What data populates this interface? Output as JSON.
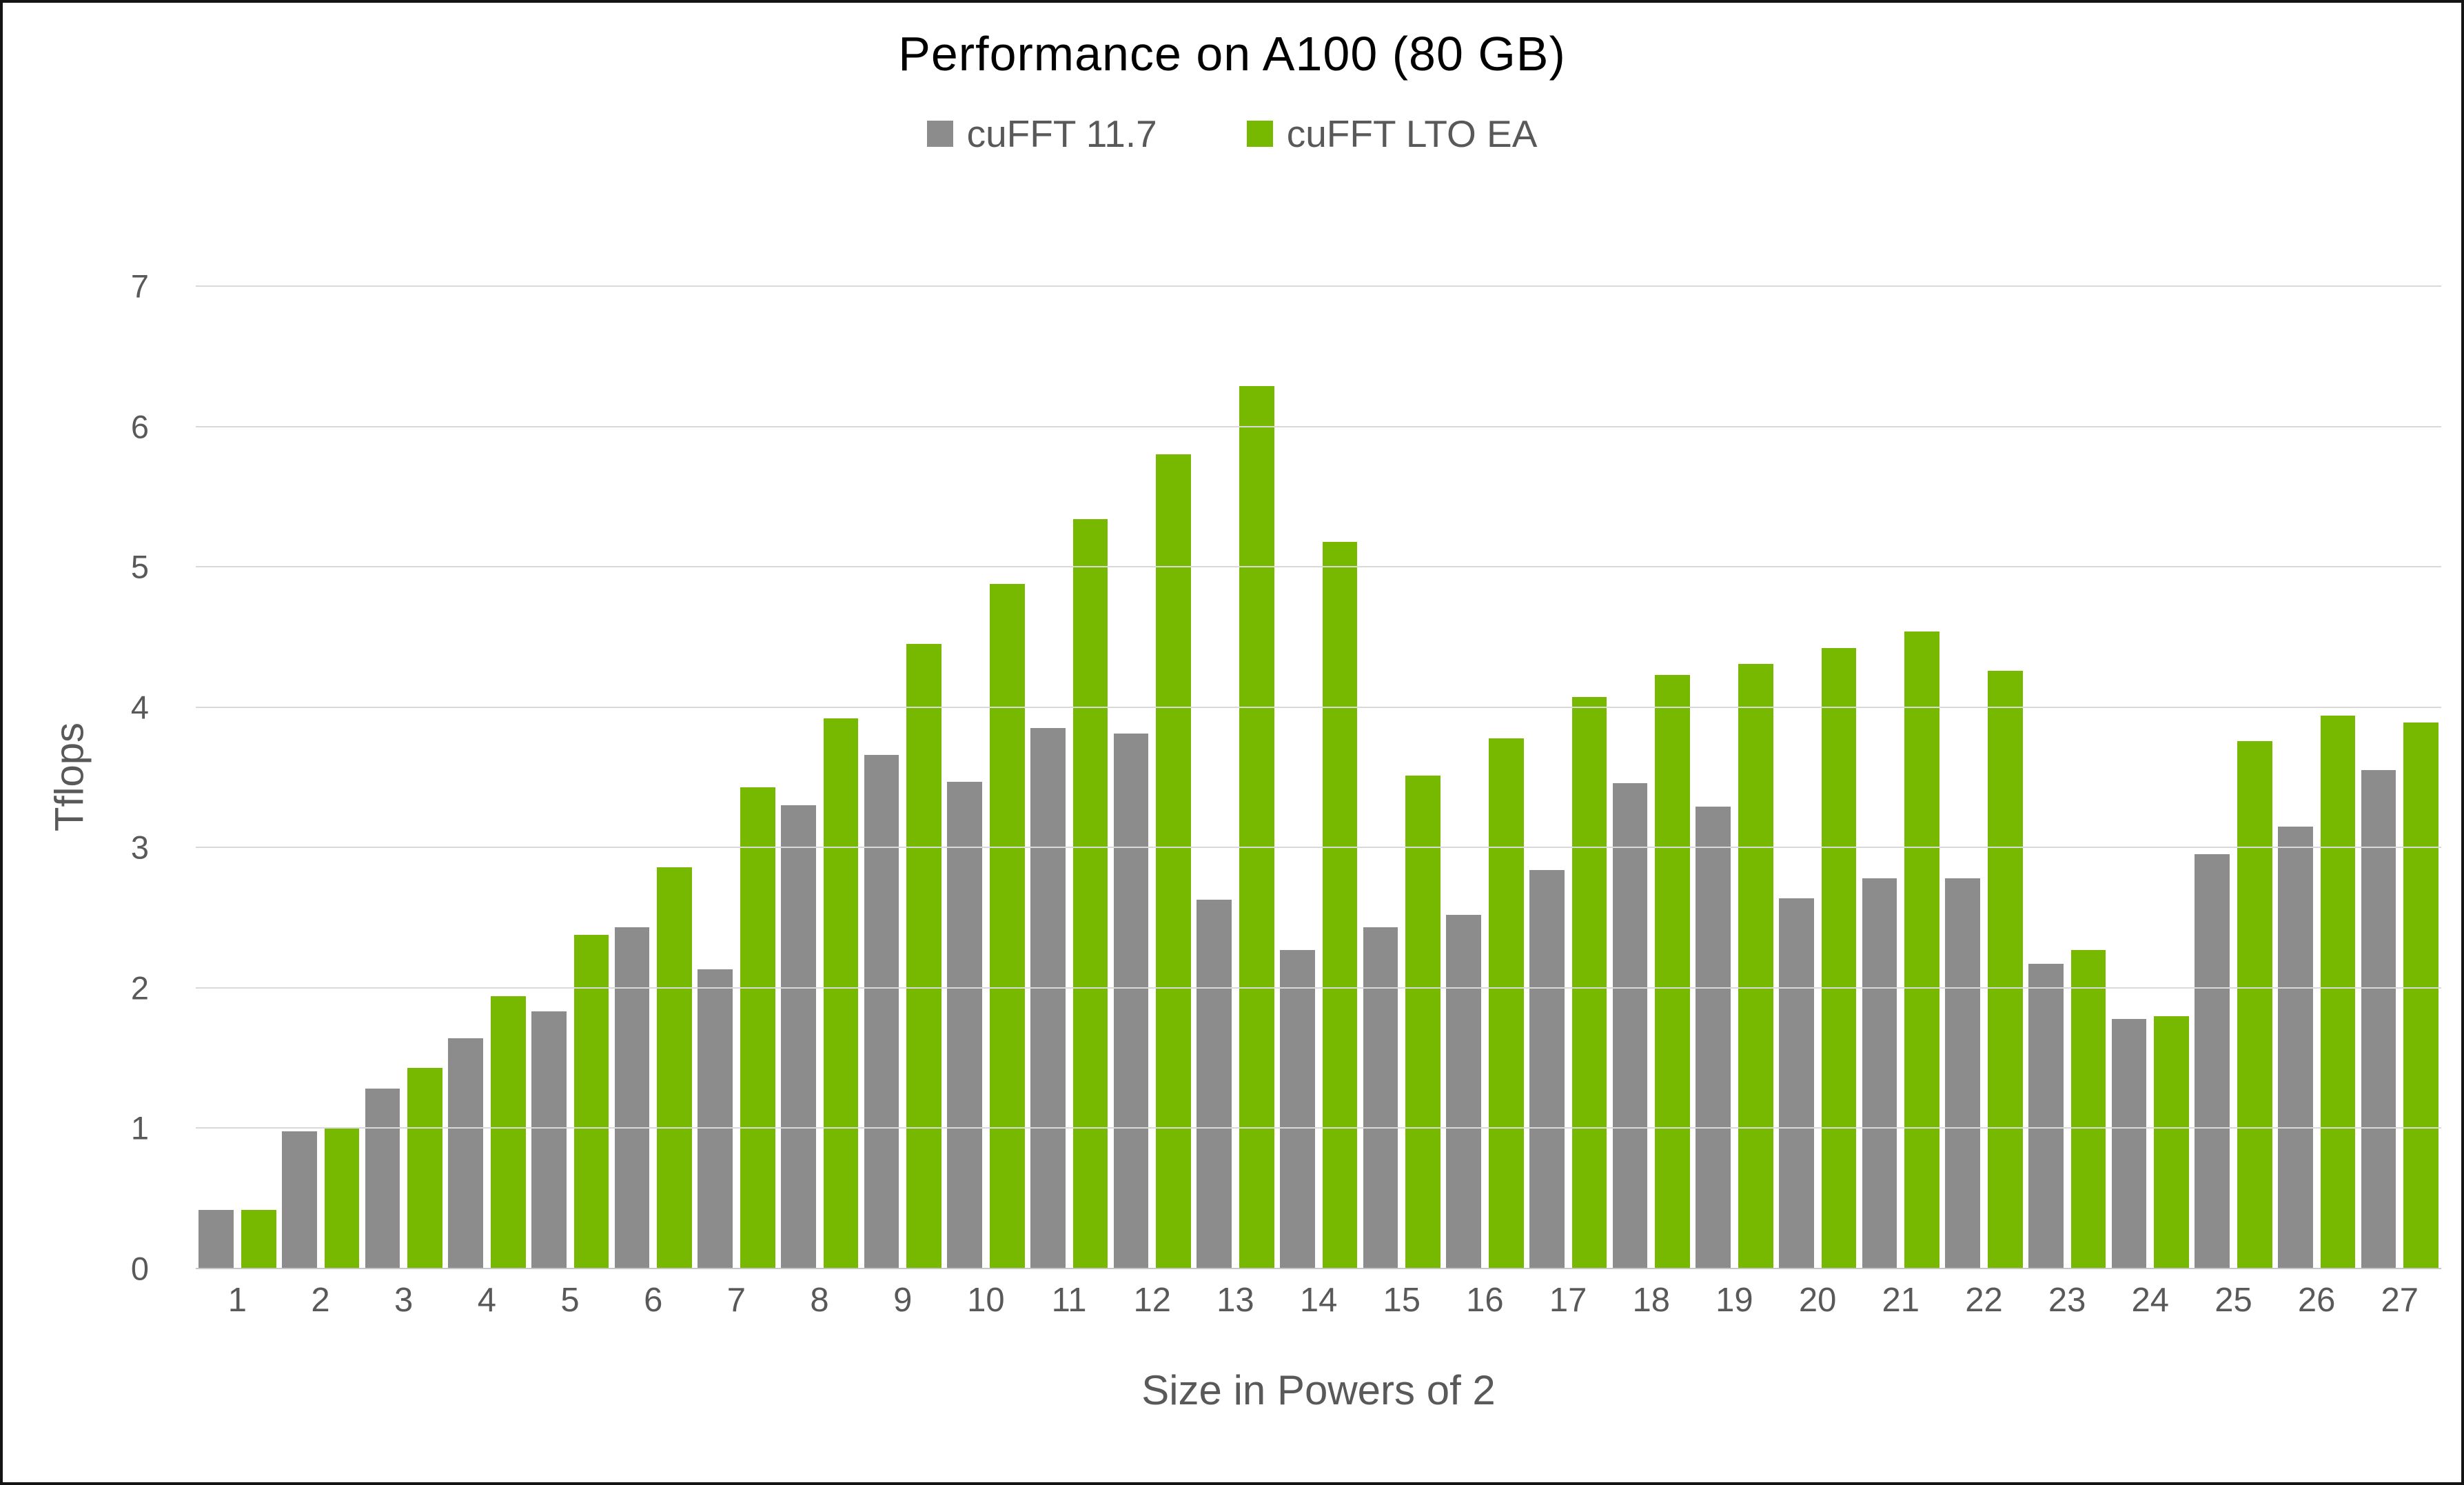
{
  "chart_data": {
    "type": "bar",
    "title": "Performance on A100 (80 GB)",
    "xlabel": "Size in Powers of 2",
    "ylabel": "Tflops",
    "categories": [
      "1",
      "2",
      "3",
      "4",
      "5",
      "6",
      "7",
      "8",
      "9",
      "10",
      "11",
      "12",
      "13",
      "14",
      "15",
      "16",
      "17",
      "18",
      "19",
      "20",
      "21",
      "22",
      "23",
      "24",
      "25",
      "26",
      "27"
    ],
    "series": [
      {
        "name": "cuFFT 11.7",
        "color": "#8C8C8C",
        "values": [
          0.42,
          0.98,
          1.28,
          1.64,
          1.83,
          2.43,
          2.13,
          3.3,
          3.66,
          3.47,
          3.85,
          3.81,
          2.63,
          2.27,
          2.43,
          2.52,
          2.84,
          3.46,
          3.29,
          2.64,
          2.78,
          2.78,
          2.17,
          1.78,
          2.95,
          3.15,
          3.55
        ]
      },
      {
        "name": "cuFFT LTO EA",
        "color": "#76B900",
        "values": [
          0.42,
          1.0,
          1.43,
          1.94,
          2.38,
          2.86,
          3.43,
          3.92,
          4.45,
          4.88,
          5.34,
          5.8,
          6.29,
          5.18,
          3.51,
          3.78,
          4.07,
          4.23,
          4.31,
          4.42,
          4.54,
          4.26,
          2.27,
          1.8,
          3.76,
          3.94,
          3.89
        ]
      }
    ],
    "ylim": [
      0,
      7
    ],
    "yticks": [
      0,
      1,
      2,
      3,
      4,
      5,
      6,
      7
    ],
    "grid": true,
    "legend_position": "top",
    "gridline_color": "#D9D9D9",
    "axis_text_color": "#595959",
    "title_color": "#000000",
    "background_color": "#FFFFFF"
  }
}
